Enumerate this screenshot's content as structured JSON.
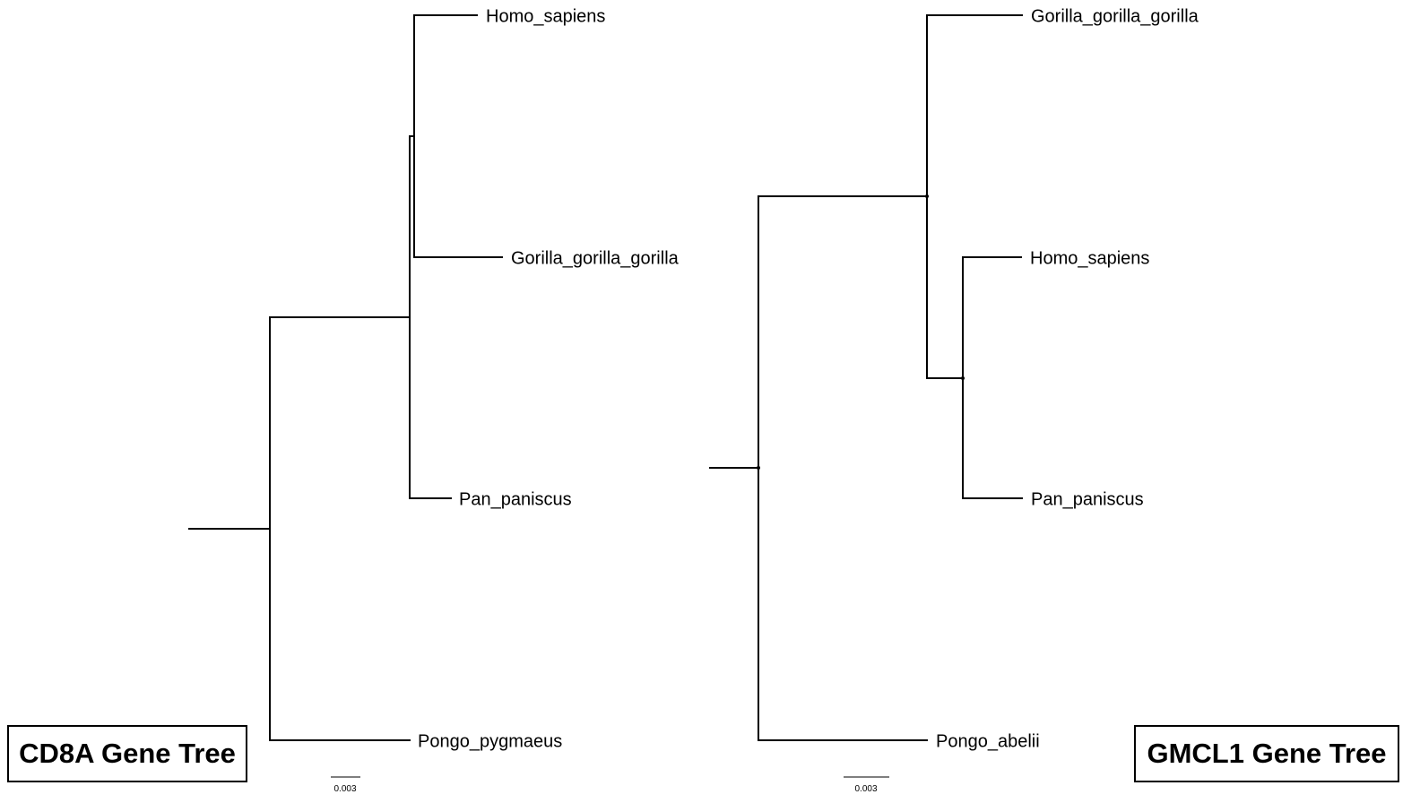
{
  "left_tree": {
    "title": "CD8A Gene Tree",
    "leaves": {
      "homo": "Homo_sapiens",
      "gorilla": "Gorilla_gorilla_gorilla",
      "pan": "Pan_paniscus",
      "pongo": "Pongo_pygmaeus"
    },
    "scale_bar_label": "0.003"
  },
  "right_tree": {
    "title": "GMCL1 Gene Tree",
    "leaves": {
      "gorilla": "Gorilla_gorilla_gorilla",
      "homo": "Homo_sapiens",
      "pan": "Pan_paniscus",
      "pongo": "Pongo_abelii"
    },
    "scale_bar_label": "0.003"
  },
  "colors": {
    "branch": "#000000",
    "scale_bar": "#555555",
    "background": "#ffffff"
  }
}
